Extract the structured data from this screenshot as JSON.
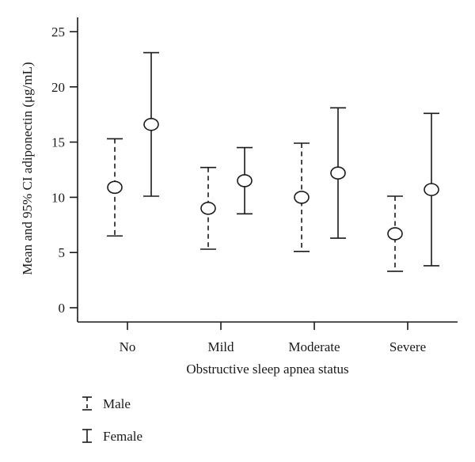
{
  "chart_data": {
    "type": "error-bar",
    "xlabel": "Obstructive sleep apnea status",
    "ylabel": "Mean and 95% CI adiponectin (μg/mL)",
    "categories": [
      "No",
      "Mild",
      "Moderate",
      "Severe"
    ],
    "ylim": [
      0,
      25
    ],
    "yticks": [
      0,
      5,
      10,
      15,
      20,
      25
    ],
    "grid": false,
    "legend_position": "bottom-left",
    "series": [
      {
        "name": "Male",
        "line_style": "dashed",
        "mean": [
          10.9,
          9.0,
          10.0,
          6.7
        ],
        "ci_low": [
          6.5,
          5.3,
          5.1,
          3.3
        ],
        "ci_high": [
          15.3,
          12.7,
          14.9,
          10.1
        ]
      },
      {
        "name": "Female",
        "line_style": "solid",
        "mean": [
          16.6,
          11.5,
          12.2,
          10.7
        ],
        "ci_low": [
          10.1,
          8.5,
          6.3,
          3.8
        ],
        "ci_high": [
          23.1,
          14.5,
          18.1,
          17.6
        ]
      }
    ]
  }
}
